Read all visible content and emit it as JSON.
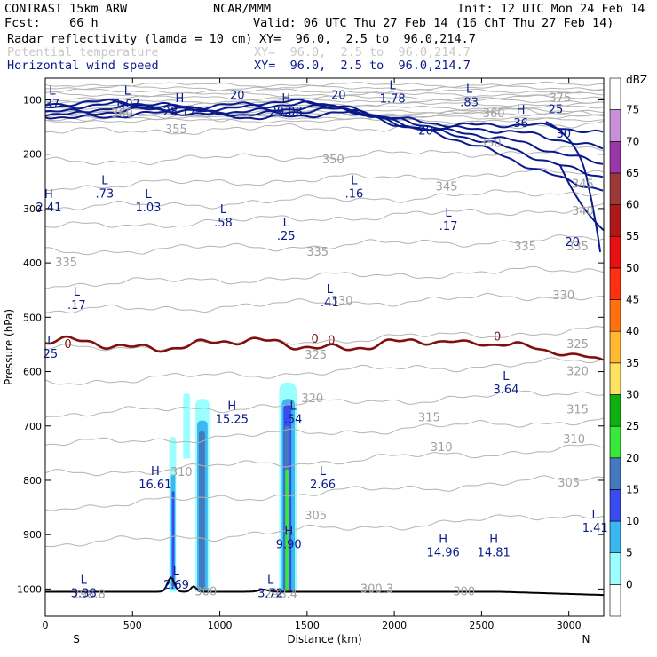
{
  "header": {
    "title": "CONTRAST 15km ARW",
    "fcst": "Fcst:    66 h",
    "org": "NCAR/MMM",
    "init": "Init: 12 UTC Mon 24 Feb 14",
    "valid": "Valid: 06 UTC Thu 27 Feb 14 (16 ChT Thu 27 Feb 14)",
    "field1": "Radar reflectivity (lamda = 10 cm)",
    "field1_xy": "XY=  96.0,  2.5 to  96.0,214.7",
    "field2": "Potential temperature",
    "field2_xy": "XY=  96.0,  2.5 to  96.0,214.7",
    "field3": "Horizontal wind speed",
    "field3_xy": "XY=  96.0,  2.5 to  96.0,214.7"
  },
  "chart_data": {
    "type": "cross-section",
    "xlabel": "Distance (km)",
    "ylabel": "Pressure (hPa)",
    "xlim": [
      0,
      3200
    ],
    "ylim": [
      1050,
      60
    ],
    "x_ticks": [
      0,
      500,
      1000,
      1500,
      2000,
      2500,
      3000
    ],
    "y_ticks": [
      100,
      200,
      300,
      400,
      500,
      600,
      700,
      800,
      900,
      1000
    ],
    "x_tick_labels": [
      "0",
      "500",
      "1000",
      "1500",
      "2000",
      "2500",
      "3000"
    ],
    "y_tick_labels": [
      "100",
      "200",
      "300",
      "400",
      "500",
      "600",
      "700",
      "800",
      "900",
      "1000"
    ],
    "left_end": "S",
    "right_end": "N",
    "colorbar": {
      "unit": "dBZ",
      "levels": [
        0,
        5,
        10,
        15,
        20,
        25,
        30,
        35,
        40,
        45,
        50,
        55,
        60,
        65,
        70,
        75
      ],
      "level_labels": [
        "0",
        "5",
        "10",
        "15",
        "20",
        "25",
        "30",
        "35",
        "40",
        "45",
        "50",
        "55",
        "60",
        "65",
        "70",
        "75"
      ],
      "colors": [
        "#ffffff",
        "#9cffff",
        "#3cb8f0",
        "#3a4cf0",
        "#4479c0",
        "#38e838",
        "#10b010",
        "#ffe060",
        "#ffb830",
        "#ff7010",
        "#ff3010",
        "#e81010",
        "#b01818",
        "#9c3838",
        "#9838a8",
        "#c890d8"
      ]
    },
    "colors": {
      "wind": "#0a1a8c",
      "theta": "#b4b4b4",
      "freezing": "#801010",
      "terrain": "#000000"
    },
    "theta_labels": [
      {
        "text": "375",
        "x": 2950,
        "p": 97
      },
      {
        "text": "360",
        "x": 440,
        "p": 125
      },
      {
        "text": "360",
        "x": 2570,
        "p": 125
      },
      {
        "text": "355",
        "x": 750,
        "p": 155
      },
      {
        "text": "350",
        "x": 1650,
        "p": 210
      },
      {
        "text": "350",
        "x": 2550,
        "p": 180
      },
      {
        "text": "345",
        "x": 2300,
        "p": 260
      },
      {
        "text": "345",
        "x": 3080,
        "p": 255
      },
      {
        "text": "340",
        "x": 3080,
        "p": 305
      },
      {
        "text": "335",
        "x": 1560,
        "p": 380
      },
      {
        "text": "335",
        "x": 2750,
        "p": 370
      },
      {
        "text": "335",
        "x": 120,
        "p": 400
      },
      {
        "text": "335",
        "x": 3050,
        "p": 370
      },
      {
        "text": "330",
        "x": 1700,
        "p": 470
      },
      {
        "text": "330",
        "x": 2970,
        "p": 460
      },
      {
        "text": "325",
        "x": 1550,
        "p": 570
      },
      {
        "text": "325",
        "x": 3050,
        "p": 550
      },
      {
        "text": "320",
        "x": 1530,
        "p": 650
      },
      {
        "text": "320",
        "x": 3050,
        "p": 600
      },
      {
        "text": "315",
        "x": 2200,
        "p": 685
      },
      {
        "text": "315",
        "x": 3050,
        "p": 670
      },
      {
        "text": "310",
        "x": 2270,
        "p": 740
      },
      {
        "text": "310",
        "x": 3030,
        "p": 725
      },
      {
        "text": "310",
        "x": 780,
        "p": 785
      },
      {
        "text": "305",
        "x": 3000,
        "p": 805
      },
      {
        "text": "305",
        "x": 1550,
        "p": 865
      },
      {
        "text": "300",
        "x": 920,
        "p": 1005
      },
      {
        "text": "300.3",
        "x": 1900,
        "p": 1000
      },
      {
        "text": "300",
        "x": 2400,
        "p": 1005
      },
      {
        "text": "298.8",
        "x": 250,
        "p": 1010
      },
      {
        "text": "298.4",
        "x": 1350,
        "p": 1010
      }
    ],
    "wind_labels": [
      {
        "text": "20",
        "x": 1100,
        "p": 92
      },
      {
        "text": "20",
        "x": 1680,
        "p": 92
      },
      {
        "text": "25",
        "x": 2925,
        "p": 118
      },
      {
        "text": "20",
        "x": 2180,
        "p": 157
      },
      {
        "text": "30",
        "x": 2970,
        "p": 163
      },
      {
        "text": "20",
        "x": 3020,
        "p": 362
      },
      {
        "text": "0",
        "x": 130,
        "p": 550
      },
      {
        "text": "0",
        "x": 1545,
        "p": 540
      },
      {
        "text": "0",
        "x": 1640,
        "p": 543
      },
      {
        "text": "0",
        "x": 2590,
        "p": 536
      }
    ],
    "extrema": [
      {
        "kind": "L",
        "value": "37",
        "x": 40,
        "p": 100
      },
      {
        "kind": "L",
        "value": "1.07",
        "x": 470,
        "p": 100
      },
      {
        "kind": "H",
        "value": "28.17",
        "x": 770,
        "p": 114
      },
      {
        "kind": "H",
        "value": "29.08",
        "x": 1380,
        "p": 114
      },
      {
        "kind": "L",
        "value": "1.78",
        "x": 1990,
        "p": 90
      },
      {
        "kind": "L",
        "value": ".83",
        "x": 2430,
        "p": 97
      },
      {
        "kind": "H",
        "value": "36",
        "x": 2725,
        "p": 135
      },
      {
        "kind": "H",
        "value": "2.41",
        "x": 20,
        "p": 290
      },
      {
        "kind": "L",
        "value": ".73",
        "x": 340,
        "p": 265
      },
      {
        "kind": "L",
        "value": "1.03",
        "x": 590,
        "p": 290
      },
      {
        "kind": "L",
        "value": ".58",
        "x": 1020,
        "p": 318
      },
      {
        "kind": "L",
        "value": ".16",
        "x": 1770,
        "p": 265
      },
      {
        "kind": "L",
        "value": ".25",
        "x": 1380,
        "p": 343
      },
      {
        "kind": "L",
        "value": ".17",
        "x": 2310,
        "p": 325
      },
      {
        "kind": "L",
        "value": ".17",
        "x": 180,
        "p": 470
      },
      {
        "kind": "L",
        "value": ".41",
        "x": 1630,
        "p": 465
      },
      {
        "kind": "L",
        "value": "25",
        "x": 30,
        "p": 560
      },
      {
        "kind": "L",
        "value": "3.64",
        "x": 2640,
        "p": 625
      },
      {
        "kind": "H",
        "value": "15.25",
        "x": 1070,
        "p": 680
      },
      {
        "kind": "L",
        "value": ".54",
        "x": 1420,
        "p": 680
      },
      {
        "kind": "H",
        "value": "16.61",
        "x": 630,
        "p": 800
      },
      {
        "kind": "L",
        "value": "2.66",
        "x": 1590,
        "p": 800
      },
      {
        "kind": "H",
        "value": "9.90",
        "x": 1395,
        "p": 910
      },
      {
        "kind": "H",
        "value": "14.96",
        "x": 2280,
        "p": 925
      },
      {
        "kind": "H",
        "value": "14.81",
        "x": 2570,
        "p": 925
      },
      {
        "kind": "L",
        "value": "1.41",
        "x": 3150,
        "p": 880
      },
      {
        "kind": "L",
        "value": "3.38",
        "x": 220,
        "p": 1000
      },
      {
        "kind": "L",
        "value": "2.69",
        "x": 750,
        "p": 985
      },
      {
        "kind": "L",
        "value": "3.72",
        "x": 1290,
        "p": 1000
      }
    ],
    "reflectivity": [
      {
        "dbz": 5,
        "x0": 710,
        "x1": 750,
        "p_top": 720,
        "p_bot": 1005
      },
      {
        "dbz": 10,
        "x0": 720,
        "x1": 745,
        "p_top": 790,
        "p_bot": 1000
      },
      {
        "dbz": 15,
        "x0": 726,
        "x1": 740,
        "p_top": 820,
        "p_bot": 995
      },
      {
        "dbz": 5,
        "x0": 790,
        "x1": 830,
        "p_top": 640,
        "p_bot": 760
      },
      {
        "dbz": 5,
        "x0": 860,
        "x1": 940,
        "p_top": 650,
        "p_bot": 1005
      },
      {
        "dbz": 10,
        "x0": 870,
        "x1": 930,
        "p_top": 690,
        "p_bot": 1005
      },
      {
        "dbz": 20,
        "x0": 880,
        "x1": 915,
        "p_top": 710,
        "p_bot": 1000
      },
      {
        "dbz": 5,
        "x0": 1340,
        "x1": 1440,
        "p_top": 620,
        "p_bot": 1005
      },
      {
        "dbz": 10,
        "x0": 1355,
        "x1": 1430,
        "p_top": 650,
        "p_bot": 1005
      },
      {
        "dbz": 15,
        "x0": 1365,
        "x1": 1410,
        "p_top": 660,
        "p_bot": 1005
      },
      {
        "dbz": 20,
        "x0": 1370,
        "x1": 1400,
        "p_top": 700,
        "p_bot": 1005
      },
      {
        "dbz": 25,
        "x0": 1375,
        "x1": 1395,
        "p_top": 780,
        "p_bot": 1005
      }
    ]
  }
}
